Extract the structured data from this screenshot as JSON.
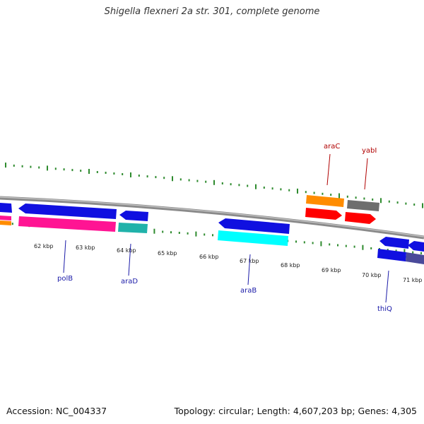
{
  "header": {
    "title": "Shigella flexneri 2a str. 301, complete genome"
  },
  "footer": {
    "accession": "Accession: NC_004337",
    "summary": "Topology: circular; Length: 4,607,203 bp; Genes: 4,305"
  },
  "colors": {
    "backbone": "#8a8a8a",
    "tick": "#2e8b2e",
    "label_forward": "#1a1aa8",
    "label_reverse": "#b00000",
    "blue": "#1010e0",
    "magenta": "#ff1493",
    "teal": "#20b2aa",
    "cyan": "#00ffff",
    "orange": "#ff8c00",
    "gray": "#6e6e6e",
    "red": "#ff0000",
    "slate": "#4a4a9a"
  },
  "map": {
    "kbp_labels": [
      "62 kbp",
      "63 kbp",
      "64 kbp",
      "65 kbp",
      "66 kbp",
      "67 kbp",
      "68 kbp",
      "69 kbp",
      "70 kbp",
      "71 kbp"
    ],
    "gene_labels": [
      {
        "name": "polB",
        "strand": "forward"
      },
      {
        "name": "araD",
        "strand": "forward"
      },
      {
        "name": "araB",
        "strand": "forward"
      },
      {
        "name": "thiQ",
        "strand": "forward"
      },
      {
        "name": "araC",
        "strand": "reverse"
      },
      {
        "name": "yabI",
        "strand": "reverse"
      }
    ]
  }
}
